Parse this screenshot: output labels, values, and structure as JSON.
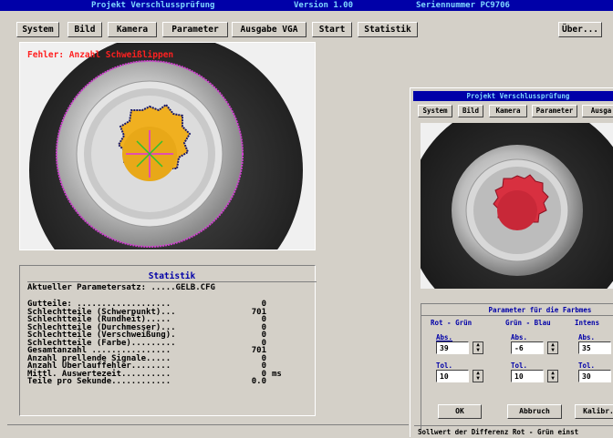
{
  "titlebar": {
    "app": "Projekt Verschlussprüfung",
    "version": "Version 1.00",
    "serial": "Seriennummer PC9706"
  },
  "menu": {
    "items": [
      "System",
      "Bild",
      "Kamera",
      "Parameter",
      "Ausgabe VGA",
      "Start",
      "Statistik"
    ],
    "about": "Über..."
  },
  "camera": {
    "error_text": "Fehler: Anzahl Schweißlippen"
  },
  "statistics": {
    "title": "Statistik",
    "param_set": "Aktueller Parametersatz: .....GELB.CFG",
    "rows": [
      {
        "label": "Gutteile: ...................",
        "value": "0",
        "unit": ""
      },
      {
        "label": "Schlechtteile (Schwerpunkt)...",
        "value": "701",
        "unit": ""
      },
      {
        "label": "Schlechtteile (Rundheit).....",
        "value": "0",
        "unit": ""
      },
      {
        "label": "Schlechtteile (Durchmesser)...",
        "value": "0",
        "unit": ""
      },
      {
        "label": "Schlechtteile (Verschweißung).",
        "value": "0",
        "unit": ""
      },
      {
        "label": "Schlechtteile (Farbe).........",
        "value": "0",
        "unit": ""
      },
      {
        "label": "Gesamtanzahl ................",
        "value": "701",
        "unit": ""
      },
      {
        "label": "Anzahl prellende Signale.....",
        "value": "0",
        "unit": ""
      },
      {
        "label": "Anzahl Überlauffehler........",
        "value": "0",
        "unit": ""
      },
      {
        "label": "Mittl. Auswertezeit..........",
        "value": "0",
        "unit": "ms"
      },
      {
        "label": "Teile pro Sekunde............",
        "value": "0.0",
        "unit": ""
      }
    ]
  },
  "window2": {
    "title": "Projekt Verschlussprüfung",
    "menu": [
      "System",
      "Bild",
      "Kamera",
      "Parameter",
      "Ausga"
    ],
    "param_title": "Parameter für die Farbmes",
    "groups": [
      {
        "name": "Rot - Grün",
        "abs_label": "Abs.",
        "abs_value": "39",
        "tol_label": "Tol.",
        "tol_value": "10"
      },
      {
        "name": "Grün - Blau",
        "abs_label": "Abs.",
        "abs_value": "-6",
        "tol_label": "Tol.",
        "tol_value": "10"
      },
      {
        "name": "Intens",
        "abs_label": "Abs.",
        "abs_value": "35",
        "tol_label": "Tol.",
        "tol_value": "30"
      }
    ],
    "buttons": {
      "ok": "OK",
      "cancel": "Abbruch",
      "calibrate": "Kalibr."
    },
    "status": "Sollwert der Differenz Rot - Grün einst"
  }
}
